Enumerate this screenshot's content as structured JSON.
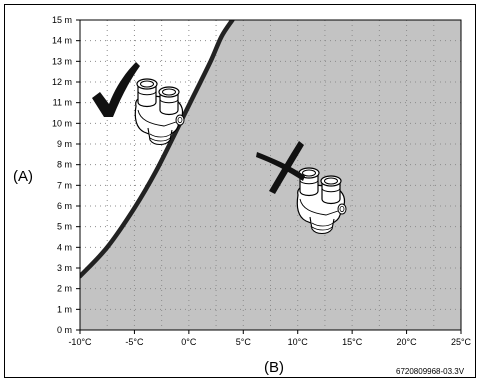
{
  "chart_data": {
    "type": "area",
    "title": "",
    "xlabel": "(B)",
    "ylabel": "(A)",
    "x_unit": "°C",
    "y_unit": "m",
    "xlim": [
      -10,
      25
    ],
    "ylim": [
      0,
      15
    ],
    "x_ticks": [
      -10,
      -5,
      0,
      5,
      10,
      15,
      20,
      25
    ],
    "x_tick_labels": [
      "-10°C",
      "-5°C",
      "0°C",
      "5°C",
      "10°C",
      "15°C",
      "20°C",
      "25°C"
    ],
    "y_ticks": [
      0,
      1,
      2,
      3,
      4,
      5,
      6,
      7,
      8,
      9,
      10,
      11,
      12,
      13,
      14,
      15
    ],
    "y_tick_labels": [
      "0 m",
      "1 m",
      "2 m",
      "3 m",
      "4 m",
      "5 m",
      "6 m",
      "7 m",
      "8 m",
      "9 m",
      "10 m",
      "11 m",
      "12 m",
      "13 m",
      "14 m",
      "15 m"
    ],
    "grid": true,
    "boundary_curve": {
      "x": [
        -10,
        -7.5,
        -5,
        -3,
        -1,
        0.5,
        2,
        3,
        4
      ],
      "y": [
        2.6,
        4.0,
        5.9,
        7.7,
        9.8,
        11.4,
        13.0,
        14.2,
        15.0
      ]
    },
    "regions": [
      {
        "position": "left of curve",
        "fill": "#ffffff",
        "marker": "check"
      },
      {
        "position": "right of curve",
        "fill": "#c3c3c3",
        "marker": "cross"
      }
    ],
    "reference_code": "6720809968-03.3V"
  },
  "colors": {
    "allowed": "#ffffff",
    "not_allowed": "#c3c3c3",
    "grid": "#8c8c8c",
    "curve": "#222222"
  },
  "icons": {
    "allowed_marker": "checkmark-icon",
    "not_allowed_marker": "cross-icon",
    "device": "twin-pipe-adapter-icon"
  }
}
